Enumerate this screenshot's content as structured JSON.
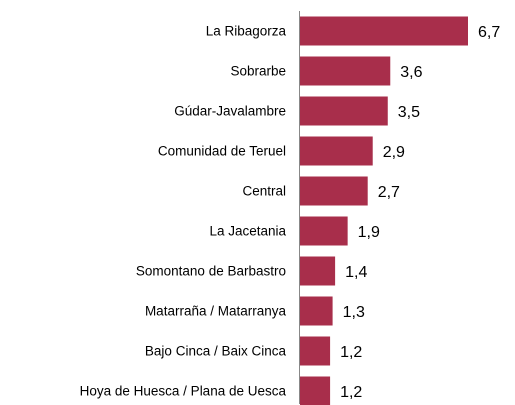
{
  "chart_data": {
    "type": "bar",
    "orientation": "horizontal",
    "categories": [
      "La Ribagorza",
      "Sobrarbe",
      "Gúdar-Javalambre",
      "Comunidad de Teruel",
      "Central",
      "La Jacetania",
      "Somontano de Barbastro",
      "Matarraña / Matarranya",
      "Bajo Cinca / Baix Cinca",
      "Hoya de Huesca / Plana de Uesca"
    ],
    "values": [
      6.7,
      3.6,
      3.5,
      2.9,
      2.7,
      1.9,
      1.4,
      1.3,
      1.2,
      1.2
    ],
    "value_labels": [
      "6,7",
      "3,6",
      "3,5",
      "2,9",
      "2,7",
      "1,9",
      "1,4",
      "1,3",
      "1,2",
      "1,2"
    ],
    "color": "#a82e4b"
  }
}
